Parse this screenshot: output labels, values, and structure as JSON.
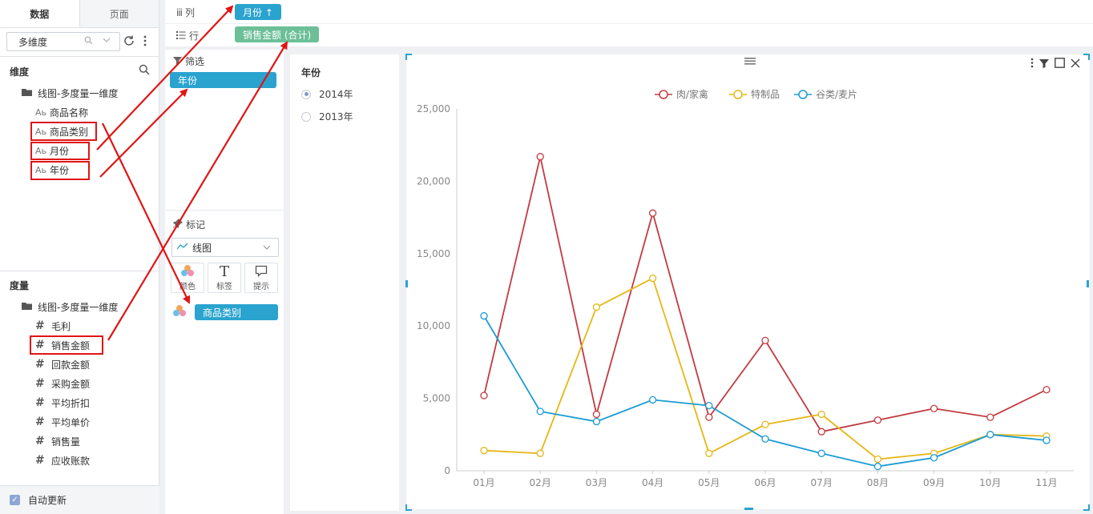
{
  "left_panel": {
    "tabs": [
      {
        "label": "数据"
      },
      {
        "label": "页面"
      }
    ],
    "dataset_select": "多维度",
    "dimension_header": "维度",
    "dimension_folder": "线图-多度量一维度",
    "dimensions": [
      {
        "type": "Ab",
        "label": "商品名称"
      },
      {
        "type": "Ab",
        "label": "商品类别"
      },
      {
        "type": "Ab",
        "label": "月份"
      },
      {
        "type": "Ab",
        "label": "年份"
      }
    ],
    "measure_header": "度量",
    "measure_folder": "线图-多度量一维度",
    "measures": [
      {
        "label": "毛利"
      },
      {
        "label": "销售金额"
      },
      {
        "label": "回款金额"
      },
      {
        "label": "采购金额"
      },
      {
        "label": "平均折扣"
      },
      {
        "label": "平均单价"
      },
      {
        "label": "销售量"
      },
      {
        "label": "应收账款"
      }
    ],
    "auto_update": "自动更新"
  },
  "shelves": {
    "columns_label": "列",
    "columns_pill": "月份 ↑",
    "rows_label": "行",
    "rows_pill": "销售金额 (合计)"
  },
  "filter_panel": {
    "filter_title": "筛选",
    "filter_pill": "年份",
    "mark_title": "标记",
    "mark_type": "线图",
    "mark_buttons": [
      {
        "label": "颜色",
        "icon": "color-dots-icon"
      },
      {
        "label": "标签",
        "icon": "text-T-icon"
      },
      {
        "label": "提示",
        "icon": "tooltip-bubble-icon"
      }
    ],
    "color_pill": "商品类别"
  },
  "year_filter": {
    "title": "年份",
    "options": [
      {
        "label": "2014年",
        "selected": true
      },
      {
        "label": "2013年",
        "selected": false
      }
    ]
  },
  "chart_data": {
    "type": "line",
    "categories": [
      "01月",
      "02月",
      "03月",
      "04月",
      "05月",
      "06月",
      "07月",
      "08月",
      "09月",
      "10月",
      "11月"
    ],
    "series": [
      {
        "name": "肉/家禽",
        "color": "#c23a41",
        "values": [
          5200,
          21700,
          3900,
          17800,
          3700,
          9000,
          2700,
          3500,
          4300,
          3700,
          5600
        ]
      },
      {
        "name": "特制品",
        "color": "#e5b716",
        "values": [
          1400,
          1200,
          11300,
          13300,
          1200,
          3200,
          3900,
          800,
          1200,
          2500,
          2400
        ]
      },
      {
        "name": "谷类/麦片",
        "color": "#1a9bd6",
        "values": [
          10700,
          4100,
          3400,
          4900,
          4500,
          2200,
          1200,
          300,
          900,
          2500,
          2100
        ]
      }
    ],
    "y_ticks": [
      "0",
      "5,000",
      "10,000",
      "15,000",
      "20,000",
      "25,000"
    ],
    "ylim": [
      0,
      25000
    ],
    "legend_position": "top-center",
    "grid": false
  },
  "colors": {
    "pill_blue": "#2aa3cf",
    "pill_green": "#6cbf97",
    "annotation_red": "#e01515"
  }
}
